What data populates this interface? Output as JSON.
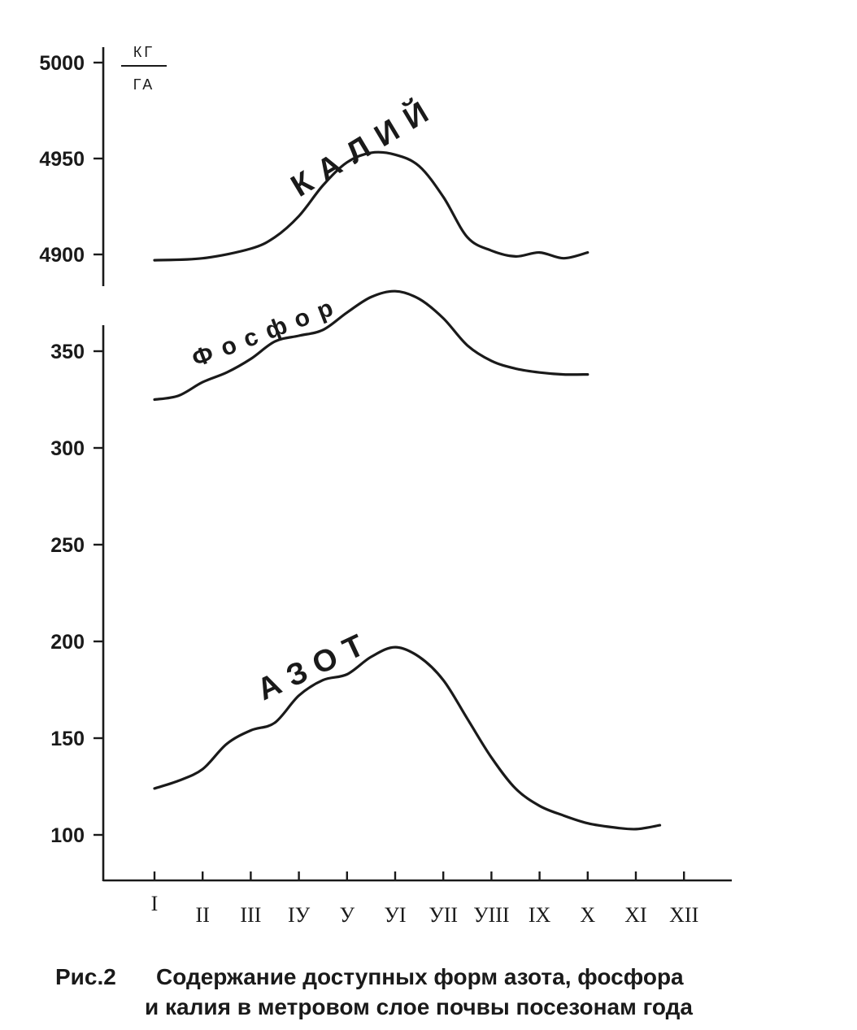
{
  "caption": {
    "prefix": "Рис.2",
    "line1": "Содержание доступных форм азота, фосфора",
    "line2": "и калия в метровом слое почвы посезонам года"
  },
  "chart_data": {
    "type": "line",
    "unit": {
      "numerator": "КГ",
      "denominator": "ГА"
    },
    "x_categories": [
      "I",
      "II",
      "III",
      "IУ",
      "У",
      "УI",
      "УII",
      "УIII",
      "IX",
      "X",
      "XI",
      "XII"
    ],
    "y_ticks_upper": [
      5000,
      4950,
      4900
    ],
    "y_ticks_lower": [
      350,
      300,
      250,
      200,
      150,
      100
    ],
    "ylim_upper": [
      4900,
      5000
    ],
    "ylim_lower": [
      100,
      350
    ],
    "grid": false,
    "series": [
      {
        "name": "КАЛИЙ",
        "panel": "upper",
        "x": [
          1.0,
          2.0,
          3.0,
          3.5,
          4.0,
          4.5,
          5.0,
          5.5,
          6.0,
          6.5,
          7.0,
          7.5,
          8.0,
          8.5,
          9.0,
          9.5,
          10.0
        ],
        "y": [
          4897,
          4898,
          4903,
          4909,
          4920,
          4936,
          4948,
          4953,
          4952,
          4946,
          4930,
          4909,
          4902,
          4899,
          4901,
          4898,
          4901
        ]
      },
      {
        "name": "Фосфор",
        "panel": "lower",
        "x": [
          1.0,
          1.5,
          2.0,
          2.5,
          3.0,
          3.5,
          4.0,
          4.5,
          5.0,
          5.5,
          6.0,
          6.5,
          7.0,
          7.5,
          8.0,
          8.5,
          9.0,
          9.5,
          10.0
        ],
        "y": [
          325,
          327,
          334,
          339,
          346,
          355,
          358,
          361,
          370,
          378,
          381,
          377,
          367,
          353,
          345,
          341,
          339,
          338,
          338
        ]
      },
      {
        "name": "АЗОТ",
        "panel": "lower",
        "x": [
          1.0,
          1.5,
          2.0,
          2.5,
          3.0,
          3.5,
          4.0,
          4.5,
          5.0,
          5.5,
          6.0,
          6.5,
          7.0,
          7.5,
          8.0,
          8.5,
          9.0,
          9.5,
          10.0,
          10.5,
          11.0,
          11.5
        ],
        "y": [
          124,
          128,
          134,
          147,
          154,
          158,
          172,
          180,
          183,
          192,
          197,
          192,
          180,
          160,
          140,
          124,
          115,
          110,
          106,
          104,
          103,
          105
        ]
      }
    ]
  }
}
